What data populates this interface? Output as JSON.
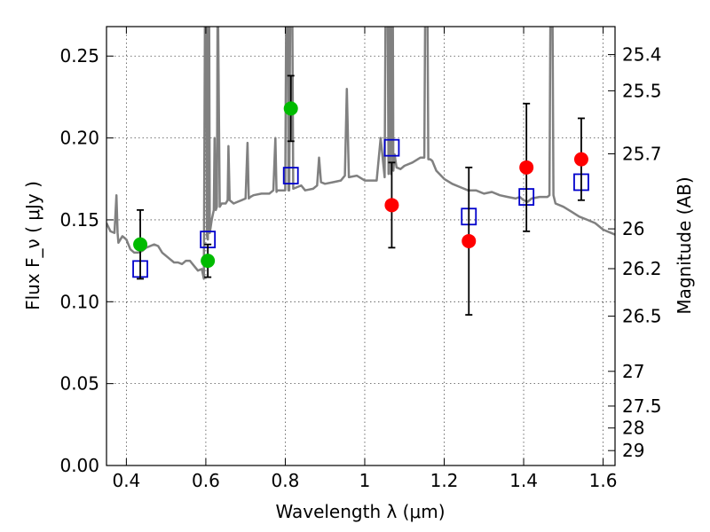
{
  "chart_data": {
    "type": "scatter",
    "xlabel": "Wavelength  λ (μm)",
    "ylabel": "Flux  F_ν  ( μJy )",
    "y2label": "Magnitude (AB)",
    "xlim": [
      0.35,
      1.63
    ],
    "ylim": [
      0.0,
      0.268
    ],
    "xticks": [
      0.4,
      0.6,
      0.8,
      1.0,
      1.2,
      1.4,
      1.6
    ],
    "xtick_labels": [
      "0.4",
      "0.6",
      "0.8",
      "1",
      "1.2",
      "1.4",
      "1.6"
    ],
    "yticks": [
      0.0,
      0.05,
      0.1,
      0.15,
      0.2,
      0.25
    ],
    "ytick_labels": [
      "0.00",
      "0.05",
      "0.10",
      "0.15",
      "0.20",
      "0.25"
    ],
    "y2ticks": [
      {
        "label": "25.4",
        "flux": 0.2509
      },
      {
        "label": "25.5",
        "flux": 0.2288
      },
      {
        "label": "25.7",
        "flux": 0.1903
      },
      {
        "label": "26",
        "flux": 0.1445
      },
      {
        "label": "26.2",
        "flux": 0.1202
      },
      {
        "label": "26.5",
        "flux": 0.0912
      },
      {
        "label": "27",
        "flux": 0.0575
      },
      {
        "label": "27.5",
        "flux": 0.0363
      },
      {
        "label": "28",
        "flux": 0.0229
      },
      {
        "label": "29",
        "flux": 0.0091
      }
    ],
    "grid": true,
    "series": [
      {
        "kind": "model_spectrum",
        "color": "#808080",
        "x": [
          0.35,
          0.36,
          0.37,
          0.375,
          0.378,
          0.38,
          0.39,
          0.4,
          0.41,
          0.42,
          0.43,
          0.44,
          0.45,
          0.46,
          0.47,
          0.48,
          0.49,
          0.5,
          0.51,
          0.52,
          0.53,
          0.54,
          0.55,
          0.56,
          0.57,
          0.58,
          0.59,
          0.595,
          0.6,
          0.603,
          0.605,
          0.607,
          0.61,
          0.615,
          0.62,
          0.622,
          0.625,
          0.628,
          0.63,
          0.635,
          0.64,
          0.65,
          0.655,
          0.657,
          0.66,
          0.665,
          0.67,
          0.68,
          0.69,
          0.7,
          0.705,
          0.708,
          0.712,
          0.72,
          0.74,
          0.76,
          0.77,
          0.775,
          0.778,
          0.78,
          0.79,
          0.8,
          0.805,
          0.808,
          0.81,
          0.815,
          0.82,
          0.83,
          0.84,
          0.85,
          0.87,
          0.88,
          0.885,
          0.89,
          0.9,
          0.92,
          0.94,
          0.95,
          0.955,
          0.96,
          0.98,
          1.0,
          1.02,
          1.03,
          1.04,
          1.05,
          1.055,
          1.06,
          1.063,
          1.066,
          1.069,
          1.072,
          1.075,
          1.08,
          1.09,
          1.1,
          1.12,
          1.14,
          1.15,
          1.155,
          1.16,
          1.165,
          1.17,
          1.18,
          1.2,
          1.22,
          1.24,
          1.26,
          1.28,
          1.3,
          1.32,
          1.34,
          1.36,
          1.38,
          1.39,
          1.4,
          1.41,
          1.42,
          1.44,
          1.46,
          1.465,
          1.47,
          1.475,
          1.48,
          1.5,
          1.52,
          1.54,
          1.56,
          1.58,
          1.6,
          1.62,
          1.63
        ],
        "y": [
          0.148,
          0.143,
          0.142,
          0.165,
          0.142,
          0.136,
          0.14,
          0.138,
          0.132,
          0.13,
          0.13,
          0.131,
          0.133,
          0.134,
          0.135,
          0.134,
          0.13,
          0.128,
          0.126,
          0.124,
          0.124,
          0.123,
          0.125,
          0.125,
          0.122,
          0.119,
          0.12,
          0.114,
          0.4,
          0.14,
          0.138,
          0.4,
          0.142,
          0.15,
          0.156,
          0.2,
          0.156,
          0.158,
          0.3,
          0.158,
          0.16,
          0.16,
          0.162,
          0.195,
          0.162,
          0.161,
          0.16,
          0.161,
          0.162,
          0.163,
          0.197,
          0.163,
          0.164,
          0.165,
          0.166,
          0.166,
          0.168,
          0.2,
          0.167,
          0.168,
          0.168,
          0.168,
          0.4,
          0.168,
          0.168,
          0.4,
          0.169,
          0.17,
          0.171,
          0.168,
          0.169,
          0.171,
          0.188,
          0.173,
          0.172,
          0.173,
          0.174,
          0.177,
          0.23,
          0.176,
          0.177,
          0.174,
          0.174,
          0.174,
          0.2,
          0.176,
          0.4,
          0.178,
          0.4,
          0.178,
          0.4,
          0.18,
          0.19,
          0.182,
          0.181,
          0.183,
          0.185,
          0.188,
          0.188,
          0.4,
          0.187,
          0.187,
          0.186,
          0.18,
          0.175,
          0.172,
          0.17,
          0.168,
          0.168,
          0.166,
          0.167,
          0.165,
          0.164,
          0.163,
          0.164,
          0.162,
          0.161,
          0.163,
          0.164,
          0.164,
          0.165,
          0.4,
          0.165,
          0.16,
          0.158,
          0.155,
          0.152,
          0.15,
          0.148,
          0.144,
          0.142,
          0.141
        ]
      },
      {
        "kind": "model_bandpass",
        "marker": "open-square",
        "color": "#0000cc",
        "x": [
          0.435,
          0.605,
          0.814,
          1.068,
          1.262,
          1.407,
          1.545
        ],
        "y": [
          0.12,
          0.138,
          0.177,
          0.194,
          0.152,
          0.164,
          0.173
        ]
      },
      {
        "kind": "observed_green",
        "marker": "filled-circle",
        "color": "#00bb00",
        "x": [
          0.435,
          0.605,
          0.814
        ],
        "y": [
          0.135,
          0.125,
          0.218
        ],
        "err": [
          0.021,
          0.01,
          0.02
        ]
      },
      {
        "kind": "observed_red",
        "marker": "filled-circle",
        "color": "#ff0000",
        "x": [
          1.068,
          1.262,
          1.407,
          1.545
        ],
        "y": [
          0.159,
          0.137,
          0.182,
          0.187
        ],
        "err": [
          0.026,
          0.045,
          0.039,
          0.025
        ]
      }
    ]
  }
}
